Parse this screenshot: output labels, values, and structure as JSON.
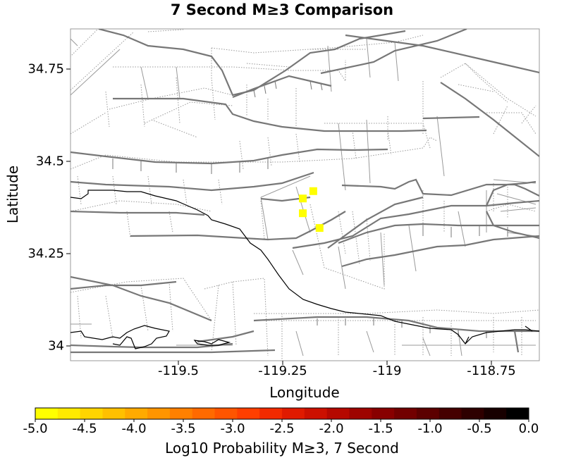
{
  "chart": {
    "title": "7 Second M≥3 Comparison",
    "xlabel": "Longitude",
    "ylabel": "Latitude"
  },
  "axes": {
    "x_ticks": [
      "-119.5",
      "-119.25",
      "-119",
      "-118.75"
    ],
    "y_ticks": [
      "34.75",
      "34.5",
      "34.25",
      "34"
    ]
  },
  "colorbar": {
    "label": "Log10 Probability M≥3, 7 Second",
    "ticks": [
      "-5.0",
      "-4.5",
      "-4.0",
      "-3.5",
      "-3.0",
      "-2.5",
      "-2.0",
      "-1.5",
      "-1.0",
      "-0.5",
      "0.0"
    ],
    "colors": [
      "#ffff00",
      "#ffea00",
      "#ffd500",
      "#ffc000",
      "#ffaa00",
      "#ff9500",
      "#ff8000",
      "#ff6a00",
      "#ff5500",
      "#ff3f00",
      "#f22a00",
      "#e01a00",
      "#cc1000",
      "#b50800",
      "#9e0300",
      "#880000",
      "#720000",
      "#5c0000",
      "#450000",
      "#2e0000",
      "#170000",
      "#000000"
    ]
  },
  "map": {
    "fault_color": "#777777",
    "coastline_color": "#000000",
    "highlight_color": "#ffff00"
  },
  "chart_data": {
    "type": "heatmap",
    "title": "7 Second M≥3 Comparison",
    "xlabel": "Longitude",
    "ylabel": "Latitude",
    "xlim": [
      -119.75,
      -118.63
    ],
    "ylim": [
      33.96,
      34.86
    ],
    "colorbar_range": [
      -5.0,
      0.0
    ],
    "points": [
      {
        "lon": -119.195,
        "lat": 34.4,
        "value": -5.0
      },
      {
        "lon": -119.17,
        "lat": 34.42,
        "value": -5.0
      },
      {
        "lon": -119.195,
        "lat": 34.36,
        "value": -5.0
      },
      {
        "lon": -119.155,
        "lat": 34.32,
        "value": -5.0
      }
    ]
  }
}
